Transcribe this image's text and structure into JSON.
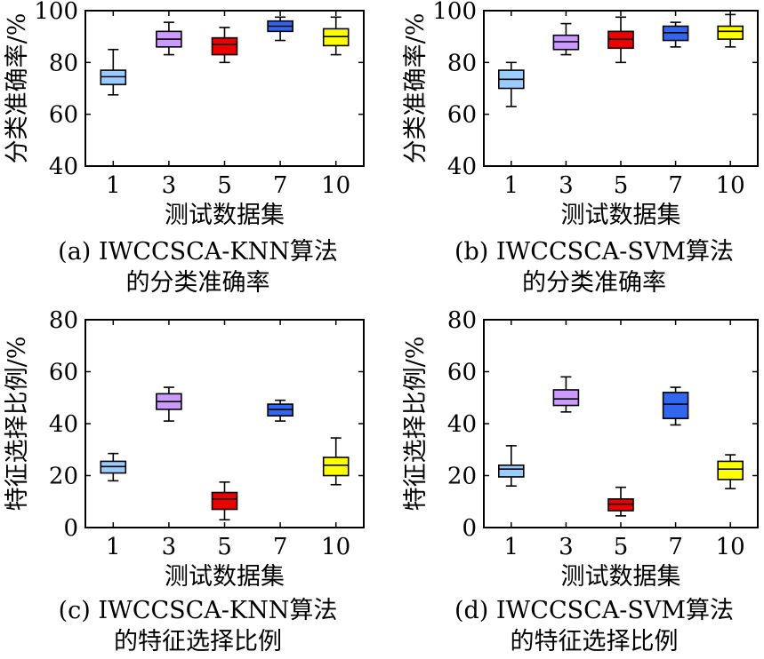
{
  "chart_data": [
    {
      "type": "box",
      "caption_line1": "(a) IWCCSCA-KNN算法",
      "caption_line2": "的分类准确率",
      "xlabel": "测试数据集",
      "ylabel": "分类准确率/%",
      "ylim": [
        40,
        100
      ],
      "yticks": [
        "40",
        "60",
        "80",
        "100"
      ],
      "categories": [
        "1",
        "3",
        "5",
        "7",
        "10"
      ],
      "boxes": [
        {
          "min": 67.5,
          "q1": 71.5,
          "median": 74.5,
          "q3": 77,
          "max": 85,
          "color": "#99ccff"
        },
        {
          "min": 83,
          "q1": 86,
          "median": 89,
          "q3": 92,
          "max": 95.5,
          "color": "#cc99ff"
        },
        {
          "min": 80,
          "q1": 83,
          "median": 87,
          "q3": 89.5,
          "max": 93.5,
          "color": "#ee0000"
        },
        {
          "min": 88.5,
          "q1": 92,
          "median": 94,
          "q3": 96,
          "max": 97.5,
          "color": "#3366ee"
        },
        {
          "min": 83,
          "q1": 86.5,
          "median": 90,
          "q3": 93,
          "max": 97.5,
          "color": "#ffff00"
        }
      ]
    },
    {
      "type": "box",
      "caption_line1": "(b) IWCCSCA-SVM算法",
      "caption_line2": "的分类准确率",
      "xlabel": "测试数据集",
      "ylabel": "分类准确率/%",
      "ylim": [
        40,
        100
      ],
      "yticks": [
        "40",
        "60",
        "80",
        "100"
      ],
      "categories": [
        "1",
        "3",
        "5",
        "7",
        "10"
      ],
      "boxes": [
        {
          "min": 63,
          "q1": 70,
          "median": 73.5,
          "q3": 77,
          "max": 80,
          "color": "#99ccff"
        },
        {
          "min": 83,
          "q1": 85,
          "median": 88,
          "q3": 90.5,
          "max": 95,
          "color": "#cc99ff"
        },
        {
          "min": 80,
          "q1": 85.5,
          "median": 89,
          "q3": 92,
          "max": 97.5,
          "color": "#ee0000"
        },
        {
          "min": 86,
          "q1": 88.5,
          "median": 91.5,
          "q3": 94,
          "max": 95.5,
          "color": "#3366ee"
        },
        {
          "min": 86,
          "q1": 89,
          "median": 92,
          "q3": 94,
          "max": 98.5,
          "color": "#ffff00"
        }
      ]
    },
    {
      "type": "box",
      "caption_line1": "(c) IWCCSCA-KNN算法",
      "caption_line2": "的特征选择比例",
      "xlabel": "测试数据集",
      "ylabel": "特征选择比例/%",
      "ylim": [
        0,
        80
      ],
      "yticks": [
        "0",
        "20",
        "40",
        "60",
        "80"
      ],
      "categories": [
        "1",
        "3",
        "5",
        "7",
        "10"
      ],
      "boxes": [
        {
          "min": 18,
          "q1": 21,
          "median": 23.5,
          "q3": 25.5,
          "max": 28.5,
          "color": "#99ccff"
        },
        {
          "min": 41,
          "q1": 45.5,
          "median": 48.5,
          "q3": 51.5,
          "max": 54,
          "color": "#cc99ff"
        },
        {
          "min": 3,
          "q1": 7,
          "median": 11,
          "q3": 13.5,
          "max": 17.5,
          "color": "#ee0000"
        },
        {
          "min": 41,
          "q1": 43,
          "median": 45.5,
          "q3": 47.5,
          "max": 49,
          "color": "#3366ee"
        },
        {
          "min": 16.5,
          "q1": 20,
          "median": 24,
          "q3": 27,
          "max": 34.5,
          "color": "#ffff00"
        }
      ]
    },
    {
      "type": "box",
      "caption_line1": "(d) IWCCSCA-SVM算法",
      "caption_line2": "的特征选择比例",
      "xlabel": "测试数据集",
      "ylabel": "特征选择比例/%",
      "ylim": [
        0,
        80
      ],
      "yticks": [
        "0",
        "20",
        "40",
        "60",
        "80"
      ],
      "categories": [
        "1",
        "3",
        "5",
        "7",
        "10"
      ],
      "boxes": [
        {
          "min": 16,
          "q1": 19.5,
          "median": 22.5,
          "q3": 24,
          "max": 31.5,
          "color": "#99ccff"
        },
        {
          "min": 44.5,
          "q1": 47,
          "median": 49.5,
          "q3": 53,
          "max": 58,
          "color": "#cc99ff"
        },
        {
          "min": 4.5,
          "q1": 6.5,
          "median": 9,
          "q3": 11,
          "max": 15.5,
          "color": "#ee0000"
        },
        {
          "min": 39.5,
          "q1": 42,
          "median": 47.5,
          "q3": 52,
          "max": 54,
          "color": "#3366ee"
        },
        {
          "min": 15,
          "q1": 18.5,
          "median": 22.5,
          "q3": 25.5,
          "max": 28,
          "color": "#ffff00"
        }
      ]
    }
  ]
}
